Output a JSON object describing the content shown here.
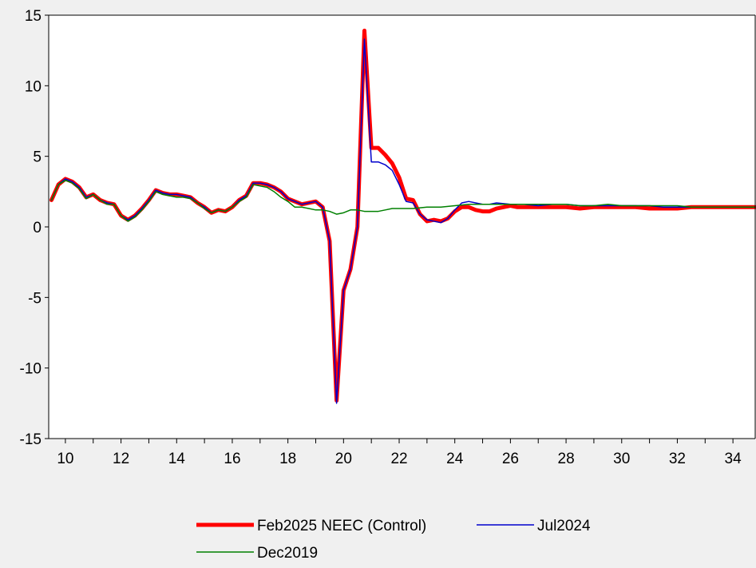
{
  "chart_data": {
    "type": "line",
    "title": "",
    "xlabel": "",
    "ylabel": "",
    "xlim": [
      9.4,
      34.8
    ],
    "ylim": [
      -15,
      15
    ],
    "grid": false,
    "legend_position": "bottom",
    "x_ticks": [
      10,
      12,
      14,
      16,
      18,
      20,
      22,
      24,
      26,
      28,
      30,
      32,
      34
    ],
    "y_ticks": [
      15,
      10,
      5,
      0,
      -5,
      -10,
      -15
    ],
    "series": [
      {
        "name": "Feb2025 NEEC (Control)",
        "color": "#ff0000",
        "points": [
          [
            9.5,
            1.9
          ],
          [
            9.75,
            3.0
          ],
          [
            10.0,
            3.4
          ],
          [
            10.25,
            3.2
          ],
          [
            10.5,
            2.8
          ],
          [
            10.75,
            2.1
          ],
          [
            11.0,
            2.3
          ],
          [
            11.25,
            1.9
          ],
          [
            11.5,
            1.7
          ],
          [
            11.75,
            1.6
          ],
          [
            12.0,
            0.8
          ],
          [
            12.25,
            0.5
          ],
          [
            12.5,
            0.8
          ],
          [
            12.75,
            1.3
          ],
          [
            13.0,
            1.9
          ],
          [
            13.25,
            2.6
          ],
          [
            13.5,
            2.4
          ],
          [
            13.75,
            2.3
          ],
          [
            14.0,
            2.3
          ],
          [
            14.25,
            2.2
          ],
          [
            14.5,
            2.1
          ],
          [
            14.75,
            1.7
          ],
          [
            15.0,
            1.4
          ],
          [
            15.25,
            1.0
          ],
          [
            15.5,
            1.2
          ],
          [
            15.75,
            1.1
          ],
          [
            16.0,
            1.4
          ],
          [
            16.25,
            1.9
          ],
          [
            16.5,
            2.2
          ],
          [
            16.75,
            3.1
          ],
          [
            17.0,
            3.1
          ],
          [
            17.25,
            3.0
          ],
          [
            17.5,
            2.8
          ],
          [
            17.75,
            2.5
          ],
          [
            18.0,
            2.0
          ],
          [
            18.25,
            1.8
          ],
          [
            18.5,
            1.6
          ],
          [
            18.75,
            1.7
          ],
          [
            19.0,
            1.8
          ],
          [
            19.25,
            1.4
          ],
          [
            19.5,
            -1.0
          ],
          [
            19.75,
            -12.3
          ],
          [
            20.0,
            -4.5
          ],
          [
            20.25,
            -3.0
          ],
          [
            20.5,
            0.0
          ],
          [
            20.75,
            13.9
          ],
          [
            21.0,
            5.6
          ],
          [
            21.25,
            5.6
          ],
          [
            21.5,
            5.1
          ],
          [
            21.75,
            4.5
          ],
          [
            22.0,
            3.5
          ],
          [
            22.25,
            2.0
          ],
          [
            22.5,
            1.9
          ],
          [
            22.75,
            0.9
          ],
          [
            23.0,
            0.4
          ],
          [
            23.25,
            0.5
          ],
          [
            23.5,
            0.4
          ],
          [
            23.75,
            0.6
          ],
          [
            24.0,
            1.1
          ],
          [
            24.25,
            1.4
          ],
          [
            24.5,
            1.4
          ],
          [
            24.75,
            1.2
          ],
          [
            25.0,
            1.1
          ],
          [
            25.25,
            1.1
          ],
          [
            25.5,
            1.3
          ],
          [
            25.75,
            1.4
          ],
          [
            26.0,
            1.5
          ],
          [
            26.25,
            1.4
          ],
          [
            26.5,
            1.4
          ],
          [
            27.0,
            1.4
          ],
          [
            27.5,
            1.4
          ],
          [
            28.0,
            1.4
          ],
          [
            28.5,
            1.3
          ],
          [
            29.0,
            1.4
          ],
          [
            29.5,
            1.4
          ],
          [
            30.0,
            1.4
          ],
          [
            30.5,
            1.4
          ],
          [
            31.0,
            1.3
          ],
          [
            31.5,
            1.3
          ],
          [
            32.0,
            1.3
          ],
          [
            32.5,
            1.4
          ],
          [
            33.0,
            1.4
          ],
          [
            33.5,
            1.4
          ],
          [
            34.0,
            1.4
          ],
          [
            34.8,
            1.4
          ]
        ]
      },
      {
        "name": "Jul2024",
        "color": "#0000cc",
        "points": [
          [
            9.5,
            1.9
          ],
          [
            9.75,
            3.0
          ],
          [
            10.0,
            3.4
          ],
          [
            10.25,
            3.2
          ],
          [
            10.5,
            2.8
          ],
          [
            10.75,
            2.1
          ],
          [
            11.0,
            2.3
          ],
          [
            11.25,
            1.9
          ],
          [
            11.5,
            1.7
          ],
          [
            11.75,
            1.6
          ],
          [
            12.0,
            0.8
          ],
          [
            12.25,
            0.5
          ],
          [
            12.5,
            0.8
          ],
          [
            12.75,
            1.3
          ],
          [
            13.0,
            1.9
          ],
          [
            13.25,
            2.6
          ],
          [
            13.5,
            2.4
          ],
          [
            13.75,
            2.3
          ],
          [
            14.0,
            2.3
          ],
          [
            14.25,
            2.2
          ],
          [
            14.5,
            2.1
          ],
          [
            14.75,
            1.7
          ],
          [
            15.0,
            1.4
          ],
          [
            15.25,
            1.0
          ],
          [
            15.5,
            1.2
          ],
          [
            15.75,
            1.1
          ],
          [
            16.0,
            1.4
          ],
          [
            16.25,
            1.9
          ],
          [
            16.5,
            2.2
          ],
          [
            16.75,
            3.1
          ],
          [
            17.0,
            3.1
          ],
          [
            17.25,
            3.0
          ],
          [
            17.5,
            2.8
          ],
          [
            17.75,
            2.5
          ],
          [
            18.0,
            2.0
          ],
          [
            18.25,
            1.8
          ],
          [
            18.5,
            1.6
          ],
          [
            18.75,
            1.7
          ],
          [
            19.0,
            1.8
          ],
          [
            19.25,
            1.4
          ],
          [
            19.5,
            -1.0
          ],
          [
            19.75,
            -12.5
          ],
          [
            20.0,
            -4.5
          ],
          [
            20.25,
            -3.0
          ],
          [
            20.5,
            0.0
          ],
          [
            20.75,
            13.3
          ],
          [
            21.0,
            4.6
          ],
          [
            21.25,
            4.6
          ],
          [
            21.5,
            4.4
          ],
          [
            21.75,
            4.0
          ],
          [
            22.0,
            3.0
          ],
          [
            22.25,
            1.8
          ],
          [
            22.5,
            1.7
          ],
          [
            22.75,
            0.9
          ],
          [
            23.0,
            0.5
          ],
          [
            23.25,
            0.4
          ],
          [
            23.5,
            0.3
          ],
          [
            23.75,
            0.6
          ],
          [
            24.0,
            1.2
          ],
          [
            24.25,
            1.7
          ],
          [
            24.5,
            1.8
          ],
          [
            24.75,
            1.7
          ],
          [
            25.0,
            1.6
          ],
          [
            25.25,
            1.6
          ],
          [
            25.5,
            1.7
          ],
          [
            26.0,
            1.6
          ],
          [
            26.5,
            1.6
          ],
          [
            27.0,
            1.5
          ],
          [
            27.5,
            1.6
          ],
          [
            28.0,
            1.6
          ],
          [
            28.5,
            1.5
          ],
          [
            29.0,
            1.5
          ],
          [
            29.5,
            1.5
          ],
          [
            30.0,
            1.5
          ],
          [
            30.5,
            1.5
          ],
          [
            31.0,
            1.5
          ],
          [
            31.5,
            1.4
          ],
          [
            32.0,
            1.4
          ],
          [
            32.5,
            1.4
          ],
          [
            33.0,
            1.4
          ],
          [
            33.5,
            1.4
          ],
          [
            34.0,
            1.4
          ],
          [
            34.8,
            1.4
          ]
        ]
      },
      {
        "name": "Dec2019",
        "color": "#008000",
        "points": [
          [
            9.5,
            1.9
          ],
          [
            9.75,
            3.0
          ],
          [
            10.0,
            3.3
          ],
          [
            10.25,
            3.1
          ],
          [
            10.5,
            2.7
          ],
          [
            10.75,
            2.0
          ],
          [
            11.0,
            2.3
          ],
          [
            11.25,
            1.9
          ],
          [
            11.5,
            1.6
          ],
          [
            11.75,
            1.6
          ],
          [
            12.0,
            0.8
          ],
          [
            12.25,
            0.4
          ],
          [
            12.5,
            0.7
          ],
          [
            12.75,
            1.2
          ],
          [
            13.0,
            1.8
          ],
          [
            13.25,
            2.5
          ],
          [
            13.5,
            2.3
          ],
          [
            13.75,
            2.2
          ],
          [
            14.0,
            2.1
          ],
          [
            14.25,
            2.1
          ],
          [
            14.5,
            2.0
          ],
          [
            14.75,
            1.7
          ],
          [
            15.0,
            1.3
          ],
          [
            15.25,
            1.0
          ],
          [
            15.5,
            1.2
          ],
          [
            15.75,
            1.1
          ],
          [
            16.0,
            1.4
          ],
          [
            16.25,
            1.8
          ],
          [
            16.5,
            2.1
          ],
          [
            16.75,
            3.0
          ],
          [
            17.0,
            2.9
          ],
          [
            17.25,
            2.8
          ],
          [
            17.5,
            2.5
          ],
          [
            17.75,
            2.1
          ],
          [
            18.0,
            1.8
          ],
          [
            18.25,
            1.4
          ],
          [
            18.5,
            1.4
          ],
          [
            18.75,
            1.3
          ],
          [
            19.0,
            1.2
          ],
          [
            19.25,
            1.2
          ],
          [
            19.5,
            1.1
          ],
          [
            19.75,
            0.9
          ],
          [
            20.0,
            1.0
          ],
          [
            20.25,
            1.2
          ],
          [
            20.5,
            1.2
          ],
          [
            20.75,
            1.1
          ],
          [
            21.0,
            1.1
          ],
          [
            21.25,
            1.1
          ],
          [
            21.5,
            1.2
          ],
          [
            21.75,
            1.3
          ],
          [
            22.0,
            1.3
          ],
          [
            22.5,
            1.3
          ],
          [
            23.0,
            1.4
          ],
          [
            23.5,
            1.4
          ],
          [
            24.0,
            1.5
          ],
          [
            24.5,
            1.6
          ],
          [
            25.0,
            1.6
          ],
          [
            25.5,
            1.6
          ],
          [
            26.0,
            1.6
          ],
          [
            26.5,
            1.6
          ],
          [
            27.0,
            1.6
          ],
          [
            27.5,
            1.6
          ],
          [
            28.0,
            1.6
          ],
          [
            28.5,
            1.5
          ],
          [
            29.0,
            1.5
          ],
          [
            29.5,
            1.6
          ],
          [
            30.0,
            1.5
          ],
          [
            30.5,
            1.5
          ],
          [
            31.0,
            1.5
          ],
          [
            31.5,
            1.5
          ],
          [
            32.0,
            1.5
          ],
          [
            32.5,
            1.4
          ],
          [
            33.0,
            1.4
          ],
          [
            33.5,
            1.4
          ],
          [
            34.0,
            1.4
          ],
          [
            34.8,
            1.4
          ]
        ]
      }
    ]
  }
}
